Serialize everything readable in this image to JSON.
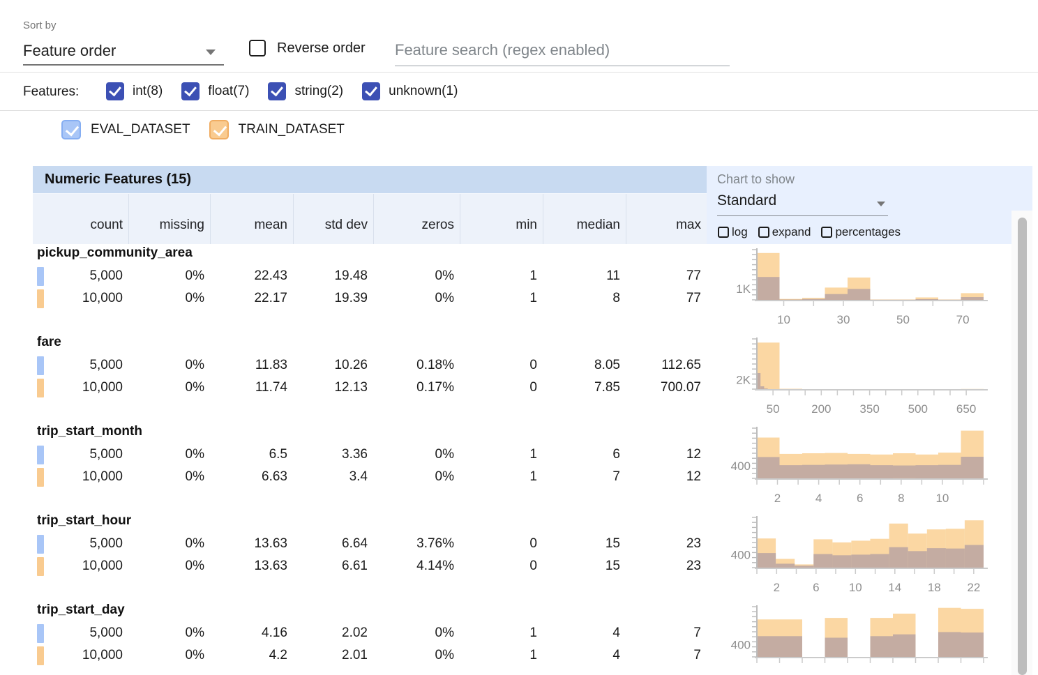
{
  "sort_bar": {
    "sort_by_label": "Sort by",
    "sort_value": "Feature order",
    "reverse_label": "Reverse order",
    "search_placeholder": "Feature search (regex enabled)"
  },
  "features_bar": {
    "label": "Features:",
    "filters": [
      {
        "label": "int(8)",
        "checked": true
      },
      {
        "label": "float(7)",
        "checked": true
      },
      {
        "label": "string(2)",
        "checked": true
      },
      {
        "label": "unknown(1)",
        "checked": true
      }
    ]
  },
  "legend": [
    {
      "label": "EVAL_DATASET",
      "color": "#a9c6f7",
      "checked": true
    },
    {
      "label": "TRAIN_DATASET",
      "color": "#f9cb90",
      "checked": true
    }
  ],
  "table": {
    "title": "Numeric Features (15)",
    "columns": [
      "count",
      "missing",
      "mean",
      "std dev",
      "zeros",
      "min",
      "median",
      "max"
    ]
  },
  "chart_controls": {
    "label": "Chart to show",
    "value": "Standard",
    "options": [
      "log",
      "expand",
      "percentages"
    ]
  },
  "colors": {
    "checkbox_indigo": "#3c50b4",
    "eval_chip": "#a9c6f7",
    "train_chip": "#f9cb90",
    "hist_train": "#fbd7a3",
    "hist_overlap": "#c4aca2",
    "table_title_bg": "#c8daf1",
    "col_header_bg": "#edf2fa",
    "chart_panel_bg": "#e8f0fe"
  },
  "features": [
    {
      "name": "pickup_community_area",
      "rows": [
        {
          "dataset": "EVAL_DATASET",
          "chip": "eval",
          "cells": [
            "5,000",
            "0%",
            "22.43",
            "19.48",
            "0%",
            "1",
            "11",
            "77"
          ]
        },
        {
          "dataset": "TRAIN_DATASET",
          "chip": "train",
          "cells": [
            "10,000",
            "0%",
            "22.17",
            "19.39",
            "0%",
            "1",
            "8",
            "77"
          ]
        }
      ]
    },
    {
      "name": "fare",
      "rows": [
        {
          "dataset": "EVAL_DATASET",
          "chip": "eval",
          "cells": [
            "5,000",
            "0%",
            "11.83",
            "10.26",
            "0.18%",
            "0",
            "8.05",
            "112.65"
          ]
        },
        {
          "dataset": "TRAIN_DATASET",
          "chip": "train",
          "cells": [
            "10,000",
            "0%",
            "11.74",
            "12.13",
            "0.17%",
            "0",
            "7.85",
            "700.07"
          ]
        }
      ]
    },
    {
      "name": "trip_start_month",
      "rows": [
        {
          "dataset": "EVAL_DATASET",
          "chip": "eval",
          "cells": [
            "5,000",
            "0%",
            "6.5",
            "3.36",
            "0%",
            "1",
            "6",
            "12"
          ]
        },
        {
          "dataset": "TRAIN_DATASET",
          "chip": "train",
          "cells": [
            "10,000",
            "0%",
            "6.63",
            "3.4",
            "0%",
            "1",
            "7",
            "12"
          ]
        }
      ]
    },
    {
      "name": "trip_start_hour",
      "rows": [
        {
          "dataset": "EVAL_DATASET",
          "chip": "eval",
          "cells": [
            "5,000",
            "0%",
            "13.63",
            "6.64",
            "3.76%",
            "0",
            "15",
            "23"
          ]
        },
        {
          "dataset": "TRAIN_DATASET",
          "chip": "train",
          "cells": [
            "10,000",
            "0%",
            "13.63",
            "6.61",
            "4.14%",
            "0",
            "15",
            "23"
          ]
        }
      ]
    },
    {
      "name": "trip_start_day",
      "rows": [
        {
          "dataset": "EVAL_DATASET",
          "chip": "eval",
          "cells": [
            "5,000",
            "0%",
            "4.16",
            "2.02",
            "0%",
            "1",
            "4",
            "7"
          ]
        },
        {
          "dataset": "TRAIN_DATASET",
          "chip": "train",
          "cells": [
            "10,000",
            "0%",
            "4.2",
            "2.01",
            "0%",
            "1",
            "4",
            "7"
          ]
        }
      ]
    }
  ],
  "chart_data": [
    {
      "type": "histogram",
      "feature": "pickup_community_area",
      "ylabel": "1K",
      "ylabel_value": 1000,
      "ymax": 4500,
      "xmin": 1,
      "xmax": 77,
      "ticks": [
        10,
        20,
        30,
        40,
        50,
        60,
        70
      ],
      "tick_labels": [
        [
          10,
          "10"
        ],
        [
          30,
          "30"
        ],
        [
          50,
          "50"
        ],
        [
          70,
          "70"
        ]
      ],
      "series": [
        {
          "name": "TRAIN_DATASET",
          "start": 1,
          "bucket_width": 7.6,
          "values": [
            4200,
            80,
            180,
            1100,
            2000,
            30,
            30,
            220,
            30,
            600
          ]
        },
        {
          "name": "EVAL_DATASET",
          "start": 1,
          "bucket_width": 7.6,
          "values": [
            2050,
            30,
            80,
            520,
            980,
            10,
            10,
            60,
            10,
            250
          ]
        }
      ]
    },
    {
      "type": "histogram",
      "feature": "fare",
      "ylabel": "2K",
      "ylabel_value": 2000,
      "ymax": 10800,
      "xmin": 0,
      "xmax": 704,
      "ticks": [
        50,
        100,
        150,
        200,
        250,
        300,
        350,
        400,
        450,
        500,
        550,
        600,
        650
      ],
      "tick_labels": [
        [
          50,
          "50"
        ],
        [
          200,
          "200"
        ],
        [
          350,
          "350"
        ],
        [
          500,
          "500"
        ],
        [
          650,
          "650"
        ]
      ],
      "series": [
        {
          "name": "TRAIN_DATASET",
          "start": 0,
          "bucket_width": 70.4,
          "values": [
            10000,
            80,
            0,
            0,
            0,
            0,
            0,
            0,
            0,
            30
          ]
        },
        {
          "name": "EVAL_DATASET",
          "start": 0,
          "bucket_width": 11.265,
          "values": [
            3450,
            600,
            130,
            0,
            0,
            0,
            0,
            0,
            0,
            0
          ]
        }
      ]
    },
    {
      "type": "histogram",
      "feature": "trip_start_month",
      "ylabel": "400",
      "ylabel_value": 400,
      "ymax": 1600,
      "xmin": 1,
      "xmax": 12,
      "ticks": [
        1,
        2,
        3,
        4,
        5,
        6,
        7,
        8,
        9,
        10,
        11,
        12
      ],
      "tick_labels": [
        [
          2,
          "2"
        ],
        [
          4,
          "4"
        ],
        [
          6,
          "6"
        ],
        [
          8,
          "8"
        ],
        [
          10,
          "10"
        ]
      ],
      "series": [
        {
          "name": "TRAIN_DATASET",
          "start": 1,
          "bucket_width": 1.1,
          "values": [
            1300,
            780,
            800,
            810,
            780,
            760,
            800,
            760,
            820,
            1520
          ]
        },
        {
          "name": "EVAL_DATASET",
          "start": 1,
          "bucket_width": 1.1,
          "values": [
            680,
            420,
            430,
            440,
            450,
            420,
            410,
            420,
            430,
            690
          ]
        }
      ]
    },
    {
      "type": "histogram",
      "feature": "trip_start_hour",
      "ylabel": "400",
      "ylabel_value": 400,
      "ymax": 1550,
      "xmin": 0,
      "xmax": 23,
      "ticks": [
        0,
        2,
        4,
        6,
        8,
        10,
        12,
        14,
        16,
        18,
        20,
        22
      ],
      "tick_labels": [
        [
          2,
          "2"
        ],
        [
          6,
          "6"
        ],
        [
          10,
          "10"
        ],
        [
          14,
          "14"
        ],
        [
          18,
          "18"
        ],
        [
          22,
          "22"
        ]
      ],
      "series": [
        {
          "name": "TRAIN_DATASET",
          "start": 0,
          "bucket_width": 1.9167,
          "values": [
            900,
            270,
            100,
            875,
            780,
            830,
            890,
            1360,
            1050,
            1180,
            1200,
            1460
          ]
        },
        {
          "name": "EVAL_DATASET",
          "start": 0,
          "bucket_width": 1.9167,
          "values": [
            450,
            120,
            60,
            420,
            380,
            400,
            420,
            630,
            510,
            600,
            590,
            700
          ]
        }
      ]
    },
    {
      "type": "histogram",
      "feature": "trip_start_day",
      "ylabel": "400",
      "ylabel_value": 400,
      "ymax": 1650,
      "xmin": 1,
      "xmax": 7,
      "ticks": [
        1,
        1.6,
        2.2,
        2.8,
        3.4,
        4,
        4.6,
        5.2,
        5.8,
        6.4,
        7
      ],
      "tick_labels": [],
      "series": [
        {
          "name": "TRAIN_DATASET",
          "start": 1,
          "bucket_width": 0.6,
          "values": [
            1230,
            1230,
            0,
            1280,
            0,
            1280,
            1420,
            0,
            1610,
            1580
          ]
        },
        {
          "name": "EVAL_DATASET",
          "start": 1,
          "bucket_width": 0.6,
          "values": [
            680,
            680,
            0,
            630,
            0,
            680,
            740,
            0,
            815,
            800
          ]
        }
      ]
    }
  ]
}
